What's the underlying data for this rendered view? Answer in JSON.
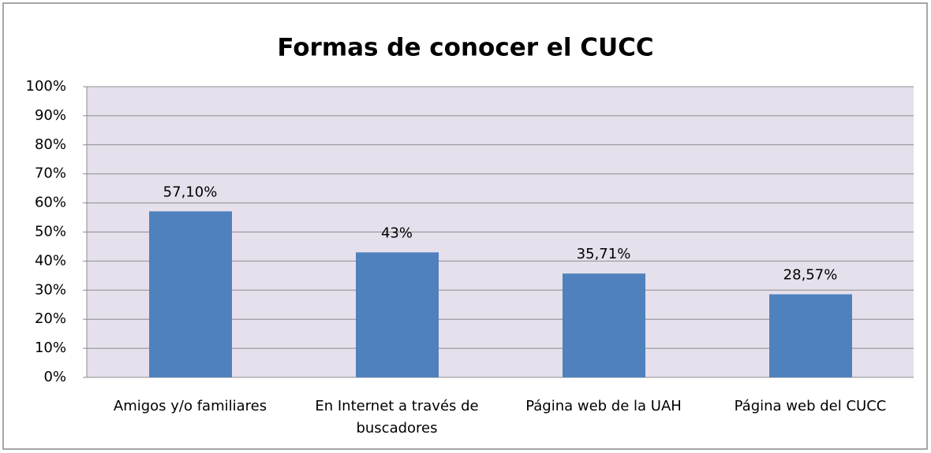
{
  "chart_data": {
    "type": "bar",
    "title": "Formas de conocer el CUCC",
    "categories": [
      "Amigos y/o familiares",
      "En Internet a través de buscadores",
      "Página web de la UAH",
      "Página web del CUCC"
    ],
    "values": [
      57.1,
      43,
      35.71,
      28.57
    ],
    "value_labels": [
      "57,10%",
      "43%",
      "35,71%",
      "28,57%"
    ],
    "color": "#4f81bd",
    "ylim": [
      0,
      100
    ],
    "yticks": [
      {
        "value": 0,
        "label": "0%"
      },
      {
        "value": 10,
        "label": "10%"
      },
      {
        "value": 20,
        "label": "20%"
      },
      {
        "value": 30,
        "label": "30%"
      },
      {
        "value": 40,
        "label": "40%"
      },
      {
        "value": 50,
        "label": "50%"
      },
      {
        "value": 60,
        "label": "60%"
      },
      {
        "value": 70,
        "label": "70%"
      },
      {
        "value": 80,
        "label": "80%"
      },
      {
        "value": 90,
        "label": "90%"
      },
      {
        "value": 100,
        "label": "100%"
      }
    ],
    "grid": true
  }
}
